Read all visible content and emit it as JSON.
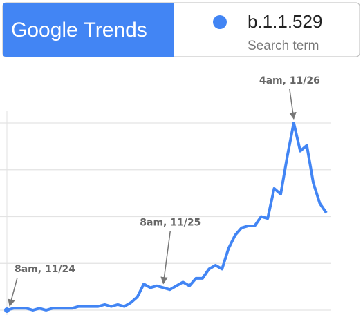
{
  "header": {
    "logo": "Google Trends",
    "term": "b.1.1.529",
    "term_caption": "Search term"
  },
  "chart_data": {
    "type": "line",
    "categories": [
      "8am, 11/24",
      null,
      null,
      null,
      null,
      null,
      null,
      null,
      null,
      null,
      null,
      null,
      null,
      null,
      null,
      null,
      null,
      null,
      null,
      null,
      null,
      null,
      null,
      null,
      "8am, 11/25",
      null,
      null,
      null,
      null,
      null,
      null,
      null,
      null,
      null,
      null,
      null,
      null,
      null,
      null,
      null,
      null,
      null,
      null,
      null,
      "4am, 11/26",
      null,
      null,
      null,
      null,
      null
    ],
    "series": [
      {
        "name": "b.1.1.529",
        "color": "#4285f4",
        "values": [
          0,
          1,
          1,
          1,
          0,
          1,
          0,
          1,
          1,
          1,
          1,
          2,
          2,
          2,
          2,
          3,
          2,
          3,
          2,
          4,
          7,
          14,
          12,
          13,
          12,
          11,
          13,
          15,
          13,
          17,
          17,
          22,
          24,
          22,
          33,
          40,
          44,
          45,
          45,
          50,
          49,
          65,
          62,
          82,
          100,
          85,
          88,
          68,
          57,
          52
        ]
      }
    ],
    "ylim": [
      0,
      100
    ],
    "yticks": [
      0,
      25,
      50,
      75,
      100
    ],
    "grid": true
  }
}
